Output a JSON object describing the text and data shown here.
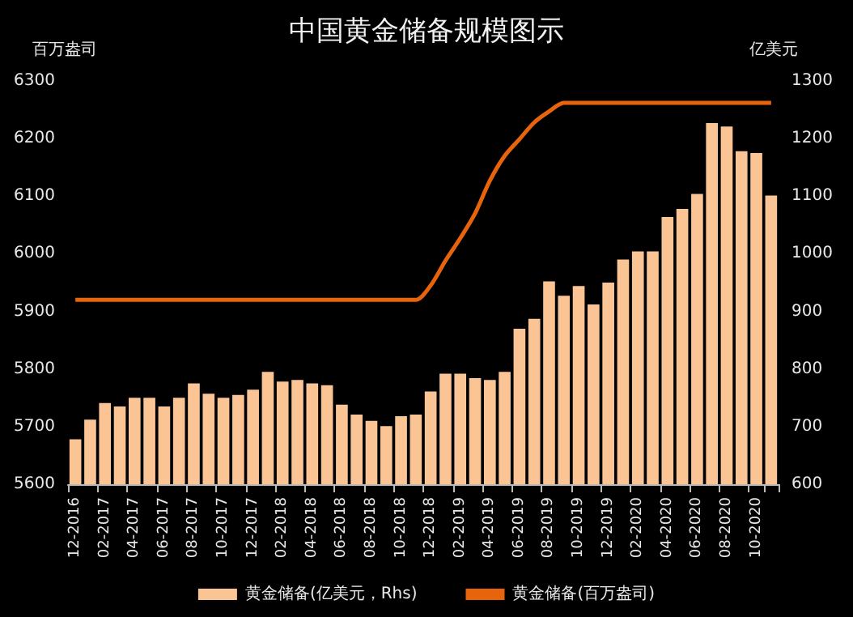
{
  "chart_data": {
    "type": "bar",
    "title": "中国黄金储备规模图示",
    "ylabel": "百万盎司",
    "y2label": "亿美元",
    "categories": [
      "12-2016",
      null,
      "02-2017",
      null,
      "04-2017",
      null,
      "06-2017",
      null,
      "08-2017",
      null,
      "10-2017",
      null,
      "12-2017",
      null,
      "02-2018",
      null,
      "04-2018",
      null,
      "06-2018",
      null,
      "08-2018",
      null,
      "10-2018",
      null,
      "12-2018",
      null,
      "02-2019",
      null,
      "04-2019",
      null,
      "06-2019",
      null,
      "08-2019",
      null,
      "10-2019",
      null,
      "12-2019",
      null,
      "02-2020",
      null,
      "04-2020",
      null,
      "06-2020",
      null,
      "08-2020",
      null,
      "10-2020",
      null
    ],
    "series": [
      {
        "name": "黄金储备(亿美元，Rhs)",
        "axis": "y2",
        "color": "#fbc495",
        "values": [
          678,
          712,
          741,
          735,
          750,
          750,
          735,
          750,
          775,
          757,
          750,
          755,
          764,
          795,
          778,
          781,
          775,
          772,
          738,
          721,
          710,
          701,
          718,
          721,
          761,
          792,
          792,
          784,
          781,
          795,
          870,
          887,
          952,
          927,
          944,
          912,
          950,
          990,
          1004,
          1004,
          1064,
          1078,
          1104,
          1227,
          1221,
          1178,
          1175,
          1101
        ]
      },
      {
        "name": "黄金储备(百万盎司)",
        "type": "line",
        "axis": "y",
        "color": "#e8640c",
        "marker": "none",
        "values": [
          5920,
          5920,
          5920,
          5920,
          5920,
          5920,
          5920,
          5920,
          5920,
          5920,
          5920,
          5920,
          5920,
          5920,
          5920,
          5920,
          5920,
          5920,
          5920,
          5920,
          5920,
          5920,
          5920,
          5920,
          5945,
          5988,
          6027,
          6070,
          6127,
          6170,
          6199,
          6228,
          6247,
          6262,
          6262,
          6262,
          6262,
          6262,
          6262,
          6262,
          6262,
          6262,
          6262,
          6262,
          6262,
          6262,
          6262,
          6262
        ]
      }
    ],
    "ylim": [
      5600,
      6300
    ],
    "yticks": [
      5600,
      5700,
      5800,
      5900,
      6000,
      6100,
      6200,
      6300
    ],
    "y2lim": [
      600,
      1300
    ],
    "y2ticks": [
      600,
      700,
      800,
      900,
      1000,
      1100,
      1200,
      1300
    ],
    "grid": false,
    "legend": "bottom"
  }
}
